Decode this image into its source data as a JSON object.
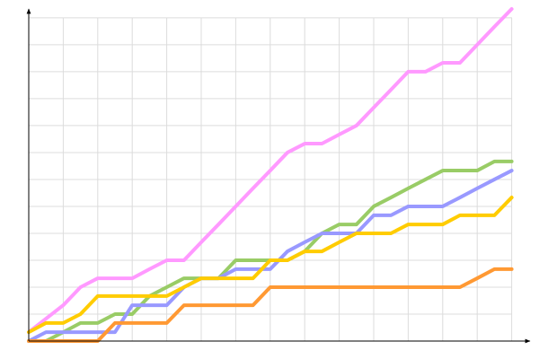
{
  "chart_data": {
    "type": "line",
    "x": [
      0,
      1,
      2,
      3,
      4,
      5,
      6,
      7,
      8,
      9,
      10,
      11,
      12,
      13,
      14,
      15,
      16,
      17,
      18,
      19,
      20,
      21,
      22,
      23,
      24,
      25,
      26,
      27,
      28
    ],
    "xlim": [
      0,
      29
    ],
    "xticks": [
      0,
      2,
      4,
      6,
      8,
      10,
      12,
      14,
      16,
      18,
      20,
      22,
      24,
      26,
      28
    ],
    "ylim": [
      0,
      12.33
    ],
    "yticks": [
      0,
      1,
      2,
      3,
      4,
      5,
      6,
      7,
      8,
      9,
      10,
      11,
      12
    ],
    "grid": true,
    "series": [
      {
        "color": "#ff99ff",
        "values": [
          0.33,
          0.83,
          1.33,
          2,
          2.33,
          2.33,
          2.33,
          2.67,
          3,
          3,
          3.67,
          4.33,
          5,
          5.67,
          6.33,
          7,
          7.33,
          7.33,
          7.67,
          8,
          8.67,
          9.33,
          10,
          10,
          10.33,
          10.33,
          11,
          11.67,
          12.33
        ]
      },
      {
        "color": "#99cc66",
        "values": [
          0,
          0,
          0.33,
          0.67,
          0.67,
          1,
          1,
          1.67,
          2,
          2.33,
          2.33,
          2.33,
          3,
          3,
          3,
          3,
          3.33,
          4,
          4.33,
          4.33,
          5,
          5.33,
          5.67,
          6,
          6.33,
          6.33,
          6.33,
          6.67,
          6.67
        ]
      },
      {
        "color": "#9999ff",
        "values": [
          0,
          0.33,
          0.33,
          0.33,
          0.33,
          0.33,
          1.33,
          1.33,
          1.33,
          2,
          2.33,
          2.33,
          2.67,
          2.67,
          2.67,
          3.33,
          3.67,
          4,
          4,
          4,
          4.67,
          4.67,
          5,
          5,
          5,
          5.33,
          5.67,
          6,
          6.33
        ]
      },
      {
        "color": "#ffcc00",
        "values": [
          0.33,
          0.67,
          0.67,
          1,
          1.67,
          1.67,
          1.67,
          1.67,
          1.67,
          2,
          2.33,
          2.33,
          2.33,
          2.33,
          3,
          3,
          3.33,
          3.33,
          3.67,
          4,
          4,
          4,
          4.33,
          4.33,
          4.33,
          4.67,
          4.67,
          4.67,
          5.33
        ]
      },
      {
        "color": "#ff9933",
        "values": [
          0,
          0,
          0,
          0,
          0,
          0.67,
          0.67,
          0.67,
          0.67,
          1.33,
          1.33,
          1.33,
          1.33,
          1.33,
          2,
          2,
          2,
          2,
          2,
          2,
          2,
          2,
          2,
          2,
          2,
          2,
          2.33,
          2.67,
          2.67
        ]
      }
    ]
  }
}
